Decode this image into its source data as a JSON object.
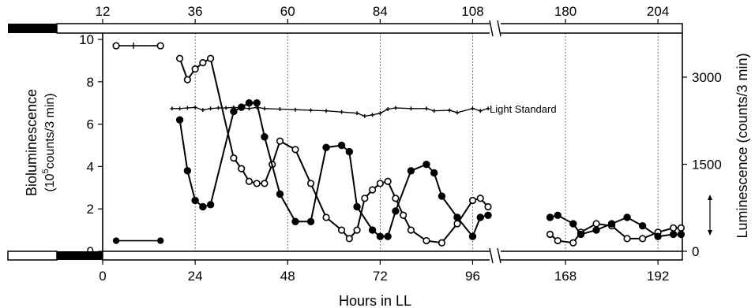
{
  "chart_data": {
    "type": "line",
    "axes": {
      "bottom": {
        "label": "Hours in LL",
        "ticks": [
          "0",
          "24",
          "48",
          "72",
          "96",
          "168",
          "192"
        ]
      },
      "top": {
        "ticks": [
          "12",
          "36",
          "60",
          "84",
          "108",
          "180",
          "204"
        ]
      },
      "left": {
        "label_line1": "Bioluminescence",
        "label_line2_pre": "(10",
        "label_line2_sup": "5",
        "label_line2_post": "counts/3 min)",
        "ticks": [
          "0",
          "2",
          "4",
          "6",
          "8",
          "10"
        ],
        "range": [
          0,
          10
        ]
      },
      "right": {
        "label": "Luminescence (counts/3 min)",
        "ticks": [
          "0",
          "1500",
          "3000"
        ],
        "range": [
          0,
          3750
        ]
      }
    },
    "x_break": {
      "after_hour": 100,
      "resumes_at_hour": 160
    },
    "annotations": {
      "light_standard": "Light Standard"
    },
    "light_dark_bars": [
      {
        "position": "top",
        "from_hour": -12,
        "to_hour": -6
      },
      {
        "position": "bottom",
        "from_hour": -6,
        "to_hour": 0
      }
    ],
    "series": [
      {
        "marker": "open-circle",
        "axis": "left",
        "points": [
          [
            20,
            9.1
          ],
          [
            22,
            8.1
          ],
          [
            24,
            8.6
          ],
          [
            26,
            8.9
          ],
          [
            28,
            9.1
          ],
          [
            34,
            4.4
          ],
          [
            36,
            3.9
          ],
          [
            38,
            3.3
          ],
          [
            40,
            3.2
          ],
          [
            42,
            3.2
          ],
          [
            44,
            4.1
          ],
          [
            46,
            5.2
          ],
          [
            50,
            4.8
          ],
          [
            54,
            3.2
          ],
          [
            58,
            1.6
          ],
          [
            62,
            1.0
          ],
          [
            64,
            0.6
          ],
          [
            66,
            1.0
          ],
          [
            68,
            2.5
          ],
          [
            70,
            2.9
          ],
          [
            72,
            3.2
          ],
          [
            74,
            3.3
          ],
          [
            76,
            2.5
          ],
          [
            78,
            1.7
          ],
          [
            80,
            1.0
          ],
          [
            84,
            0.5
          ],
          [
            88,
            0.4
          ],
          [
            92,
            1.3
          ],
          [
            96,
            2.4
          ],
          [
            98,
            2.5
          ],
          [
            100,
            2.1
          ],
          [
            164,
            0.8
          ],
          [
            166,
            0.5
          ],
          [
            170,
            0.4
          ],
          [
            172,
            0.9
          ],
          [
            176,
            1.3
          ],
          [
            180,
            1.2
          ],
          [
            184,
            0.6
          ],
          [
            188,
            0.6
          ],
          [
            192,
            0.9
          ],
          [
            196,
            1.1
          ],
          [
            198,
            1.1
          ]
        ]
      },
      {
        "marker": "filled-circle",
        "axis": "left",
        "points": [
          [
            20,
            6.2
          ],
          [
            22,
            3.8
          ],
          [
            24,
            2.4
          ],
          [
            26,
            2.1
          ],
          [
            28,
            2.2
          ],
          [
            34,
            6.6
          ],
          [
            36,
            6.8
          ],
          [
            38,
            7.0
          ],
          [
            40,
            7.0
          ],
          [
            42,
            5.4
          ],
          [
            46,
            2.7
          ],
          [
            50,
            1.4
          ],
          [
            54,
            1.4
          ],
          [
            58,
            4.9
          ],
          [
            62,
            5.0
          ],
          [
            64,
            4.7
          ],
          [
            66,
            2.1
          ],
          [
            70,
            1.0
          ],
          [
            72,
            0.7
          ],
          [
            74,
            0.7
          ],
          [
            76,
            1.9
          ],
          [
            80,
            3.8
          ],
          [
            84,
            4.1
          ],
          [
            86,
            3.7
          ],
          [
            88,
            2.6
          ],
          [
            92,
            1.6
          ],
          [
            96,
            0.7
          ],
          [
            98,
            1.6
          ],
          [
            100,
            1.7
          ],
          [
            164,
            1.6
          ],
          [
            166,
            1.7
          ],
          [
            170,
            1.3
          ],
          [
            172,
            0.8
          ],
          [
            176,
            1.0
          ],
          [
            180,
            1.3
          ],
          [
            184,
            1.6
          ],
          [
            188,
            1.2
          ],
          [
            192,
            0.7
          ],
          [
            196,
            0.8
          ],
          [
            198,
            0.8
          ]
        ]
      },
      {
        "marker": "small-plus",
        "axis": "right",
        "name": "Light Standard",
        "points": [
          [
            18,
            2460
          ],
          [
            20,
            2460
          ],
          [
            22,
            2470
          ],
          [
            24,
            2480
          ],
          [
            26,
            2435
          ],
          [
            28,
            2460
          ],
          [
            30,
            2470
          ],
          [
            32,
            2470
          ],
          [
            34,
            2480
          ],
          [
            36,
            2470
          ],
          [
            38,
            2460
          ],
          [
            40,
            2480
          ],
          [
            42,
            2460
          ],
          [
            46,
            2450
          ],
          [
            50,
            2440
          ],
          [
            54,
            2430
          ],
          [
            58,
            2420
          ],
          [
            62,
            2400
          ],
          [
            66,
            2380
          ],
          [
            68,
            2330
          ],
          [
            70,
            2350
          ],
          [
            72,
            2380
          ],
          [
            74,
            2450
          ],
          [
            76,
            2470
          ],
          [
            80,
            2460
          ],
          [
            84,
            2460
          ],
          [
            86,
            2420
          ],
          [
            90,
            2430
          ],
          [
            92,
            2390
          ],
          [
            96,
            2460
          ],
          [
            98,
            2420
          ],
          [
            100,
            2460
          ]
        ]
      }
    ],
    "pre_markers": [
      {
        "marker": "open-circle",
        "y": 9.7,
        "x_from": 3.5,
        "x_to": 15
      },
      {
        "marker": "filled-circle",
        "y": 0.5,
        "x_from": 3.5,
        "x_to": 15
      }
    ],
    "tick_marks_on_top_line": [
      8
    ],
    "scale_indicator": "vertical double-arrow on right axis"
  }
}
